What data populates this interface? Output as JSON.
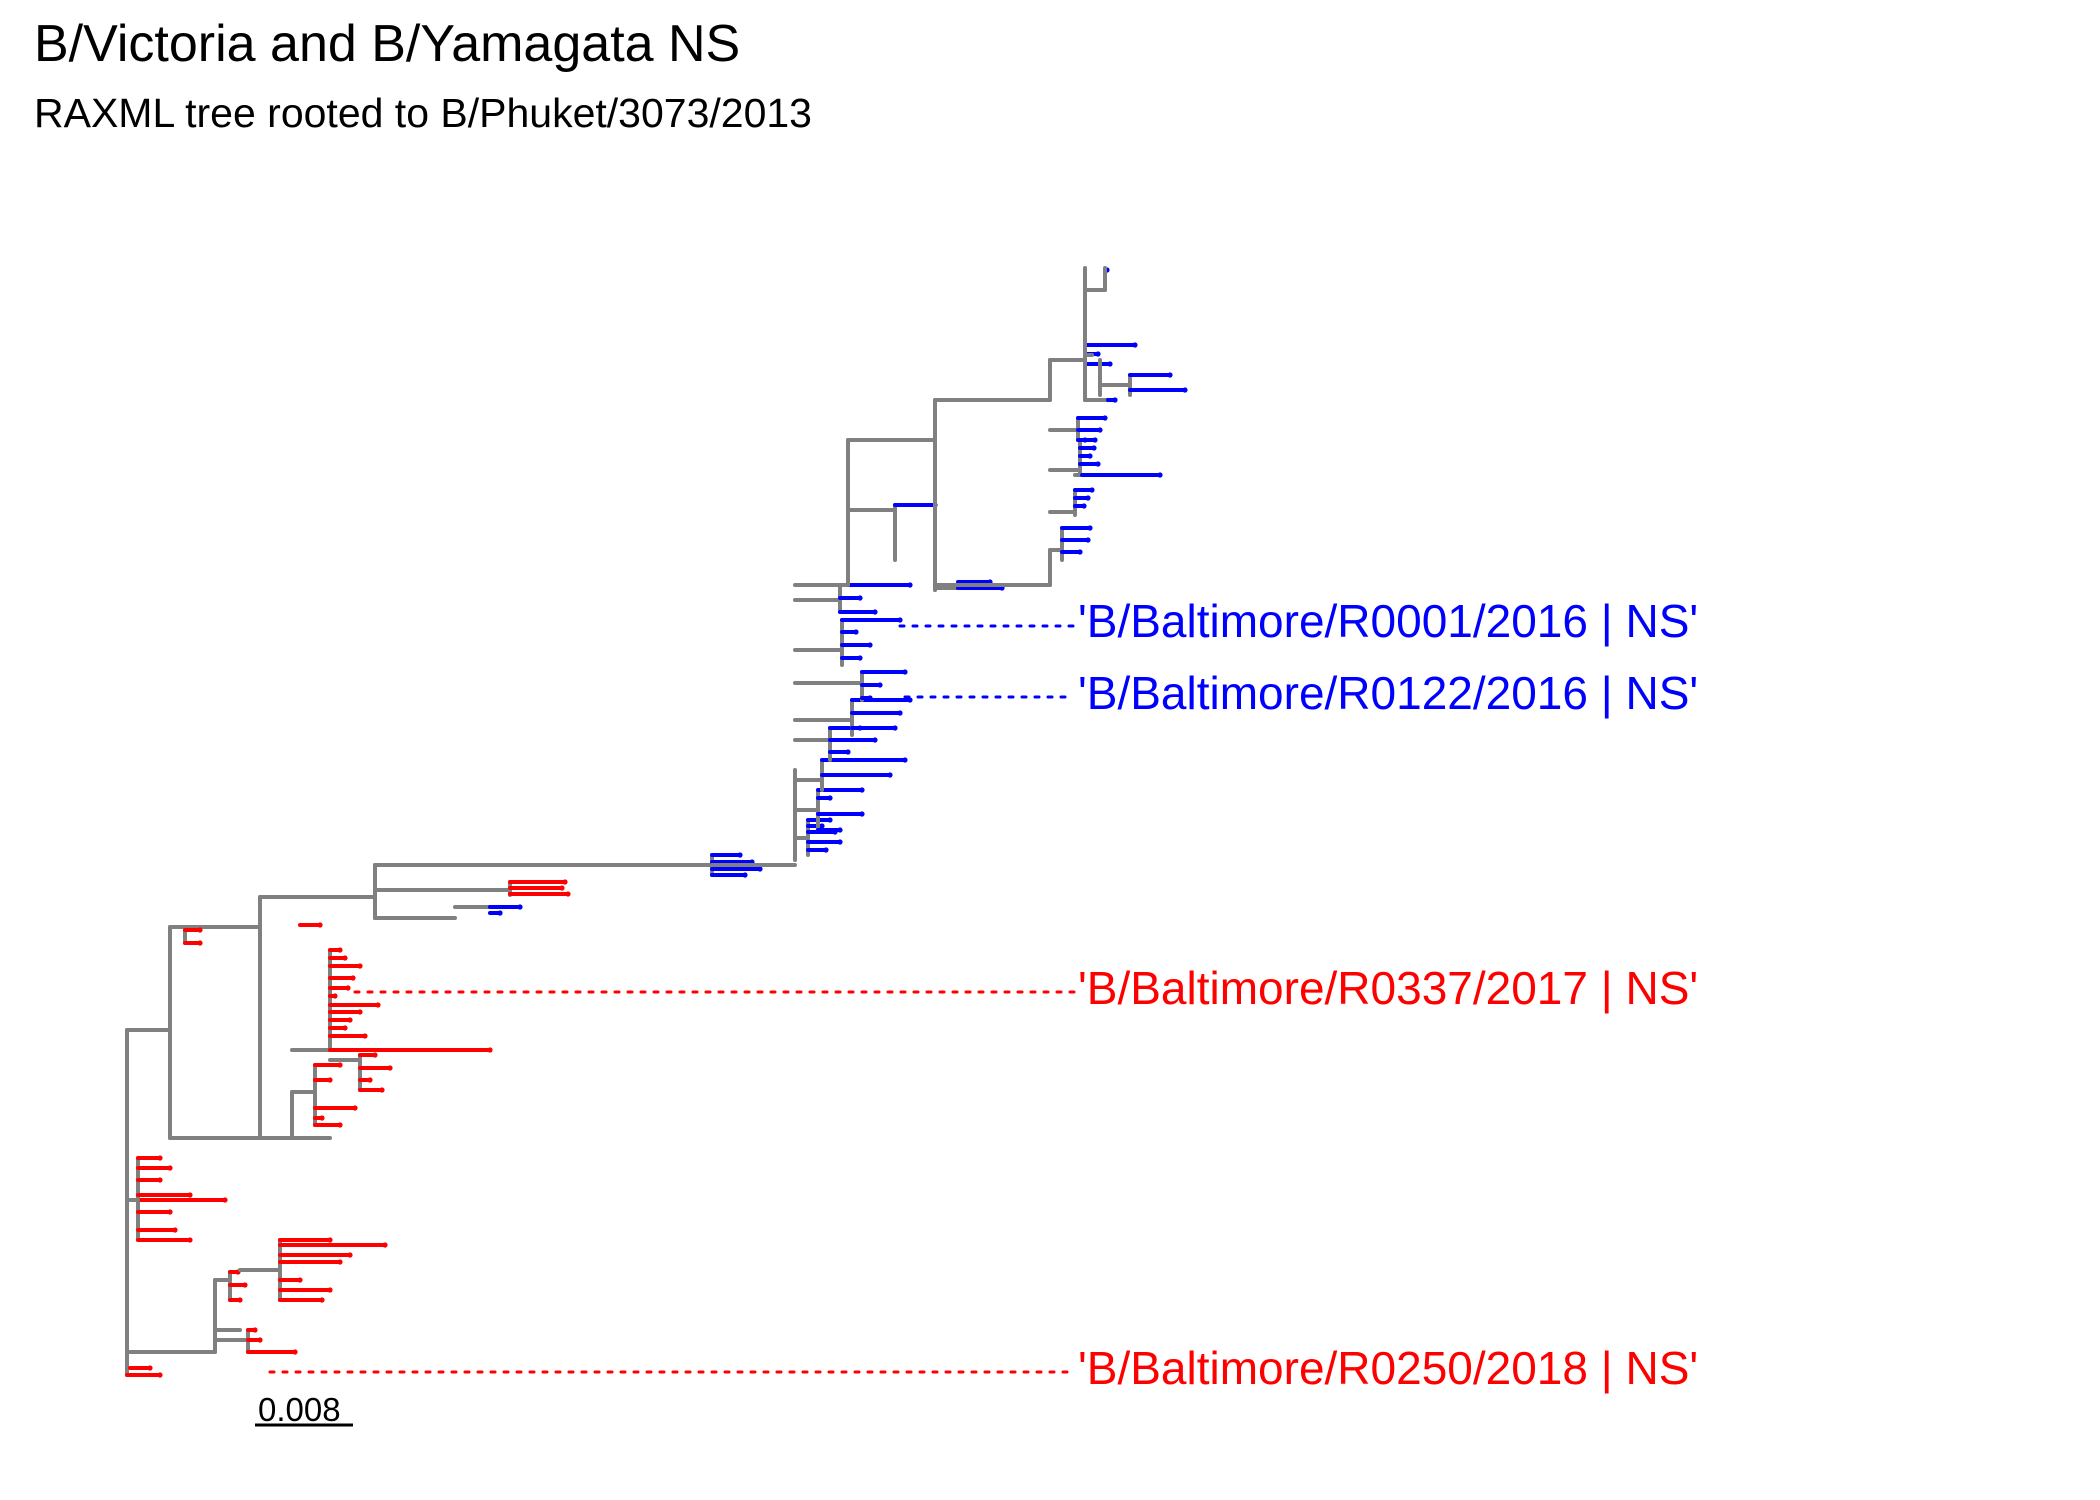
{
  "title": "B/Victoria and B/Yamagata NS",
  "subtitle": "RAXML tree rooted to B/Phuket/3073/2013",
  "colors": {
    "branch": "#808080",
    "clade_blue": "#0000ff",
    "clade_red": "#ff0000",
    "scale": "#000000"
  },
  "scale_bar": {
    "label": "0.008",
    "length": 0.008
  },
  "highlighted_tips": [
    {
      "label": "'B/Baltimore/R0001/2016 | NS'",
      "clade": "blue"
    },
    {
      "label": "'B/Baltimore/R0122/2016 | NS'",
      "clade": "blue"
    },
    {
      "label": "'B/Baltimore/R0337/2017 | NS'",
      "clade": "red"
    },
    {
      "label": "'B/Baltimore/R0250/2018 | NS'",
      "clade": "red"
    }
  ]
}
